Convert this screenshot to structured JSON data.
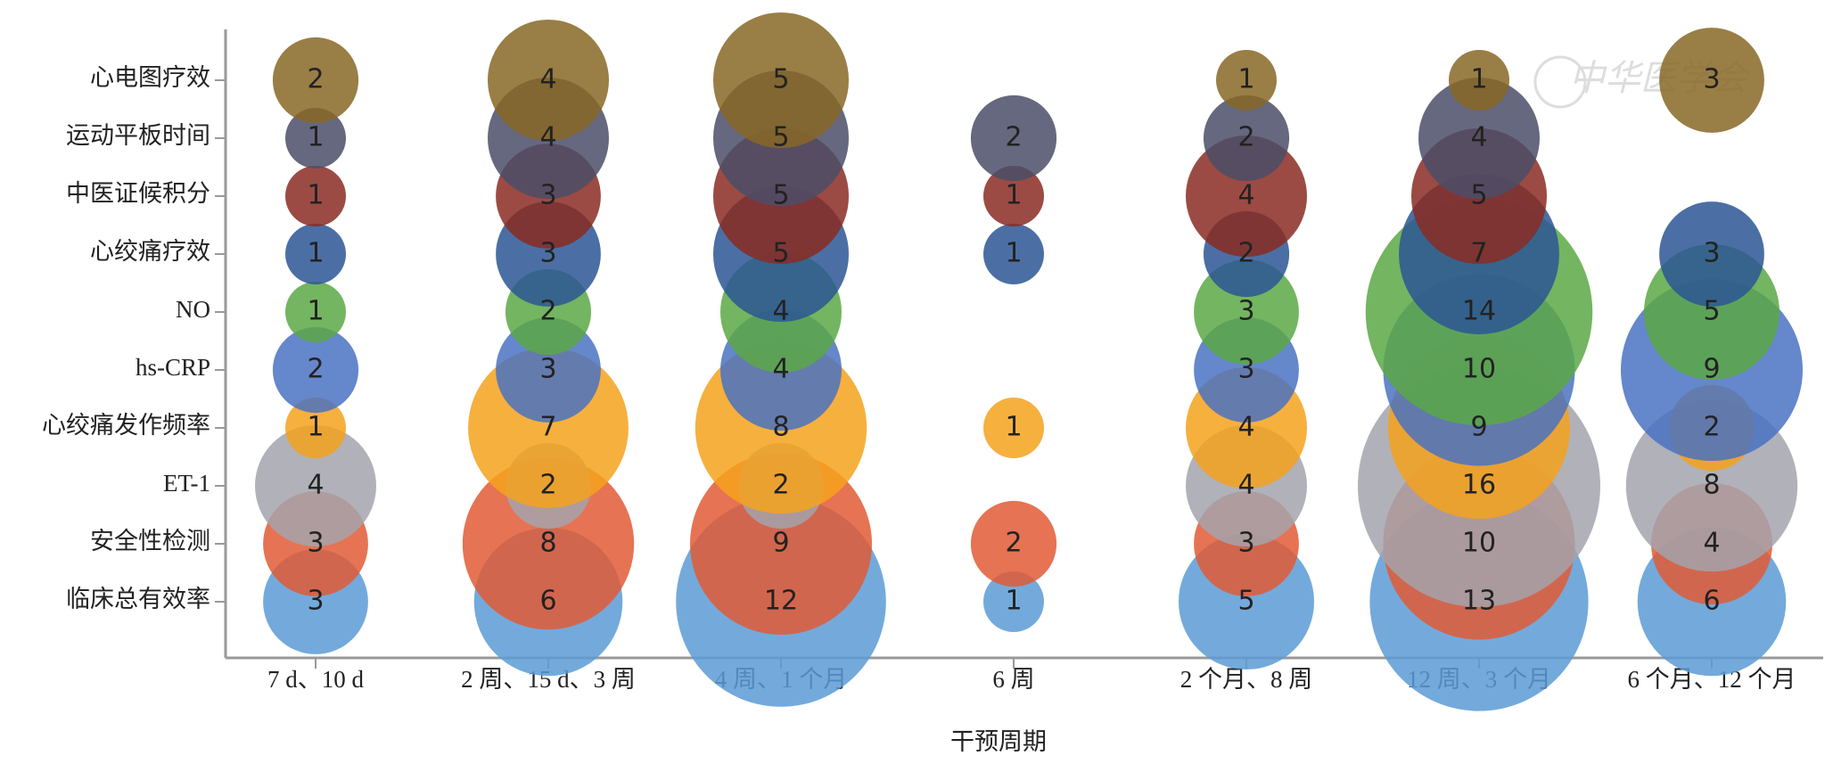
{
  "chart_data": {
    "type": "bubble",
    "x_label": "干预周期",
    "watermark": "中华医学会",
    "categories": [
      "7 d、10 d",
      "2 周、15 d、3 周",
      "4 周、1 个月",
      "6 周",
      "2 个月、8 周",
      "12 周、3 个月",
      "6 个月、12 个月"
    ],
    "series": [
      {
        "name": "临床总有效率",
        "color": "#5b9bd5",
        "values": [
          3,
          6,
          12,
          1,
          5,
          13,
          6
        ]
      },
      {
        "name": "安全性检测",
        "color": "#e25a35",
        "values": [
          3,
          8,
          9,
          2,
          3,
          10,
          4
        ]
      },
      {
        "name": "ET-1",
        "color": "#a3a3ad",
        "values": [
          4,
          2,
          2,
          null,
          4,
          16,
          8
        ]
      },
      {
        "name": "心绞痛发作频率",
        "color": "#f4a21c",
        "values": [
          1,
          7,
          8,
          1,
          4,
          9,
          2
        ]
      },
      {
        "name": "hs-CRP",
        "color": "#4a72c2",
        "values": [
          2,
          3,
          4,
          null,
          3,
          10,
          9
        ]
      },
      {
        "name": "NO",
        "color": "#5aa845",
        "values": [
          1,
          2,
          4,
          null,
          3,
          14,
          5
        ]
      },
      {
        "name": "心绞痛疗效",
        "color": "#2b5694",
        "values": [
          1,
          3,
          5,
          1,
          2,
          7,
          3
        ]
      },
      {
        "name": "中医证候积分",
        "color": "#8a2b22",
        "values": [
          1,
          3,
          5,
          1,
          4,
          5,
          null
        ]
      },
      {
        "name": "运动平板时间",
        "color": "#4b4e68",
        "values": [
          1,
          4,
          5,
          2,
          2,
          4,
          null
        ]
      },
      {
        "name": "心电图疗效",
        "color": "#876726",
        "values": [
          2,
          4,
          5,
          null,
          1,
          1,
          3
        ]
      }
    ]
  }
}
